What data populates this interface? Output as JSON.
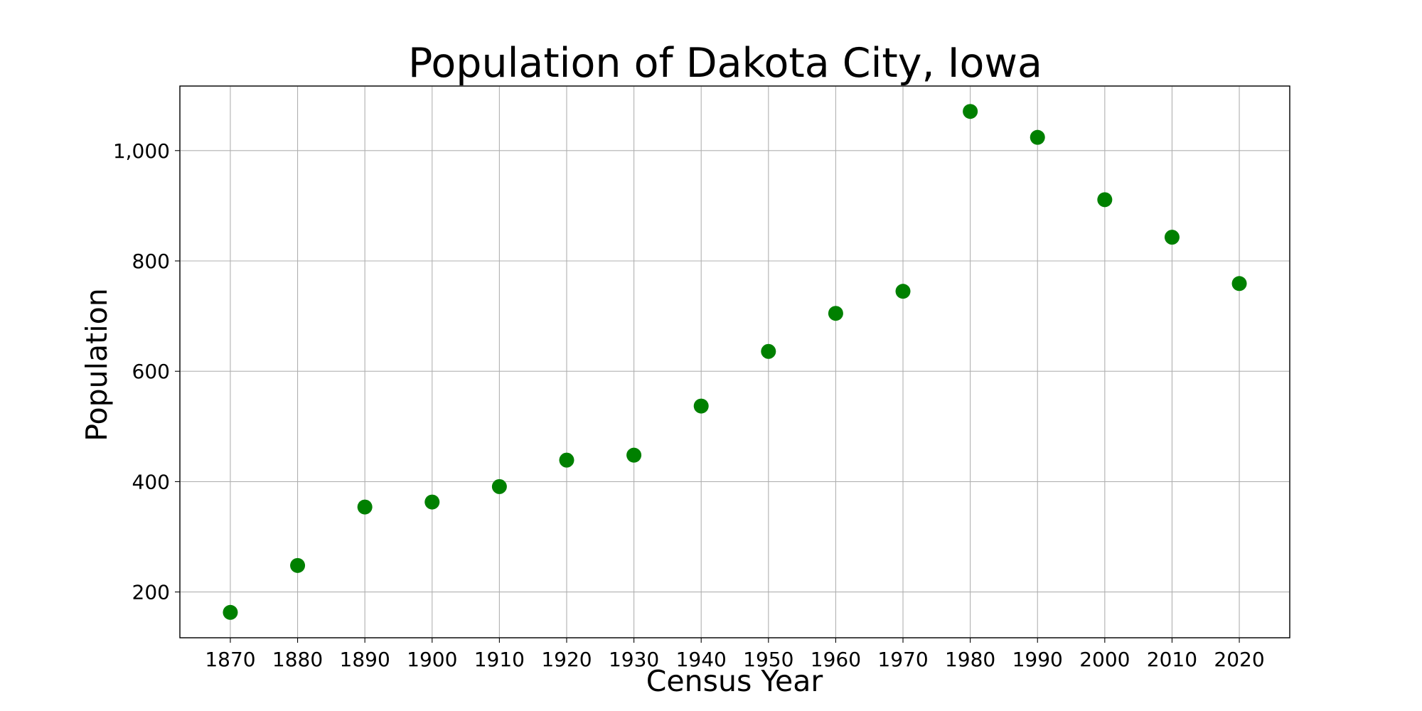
{
  "chart_data": {
    "type": "scatter",
    "title": "Population of Dakota City, Iowa",
    "xlabel": "Census Year",
    "ylabel": "Population",
    "x": [
      1870,
      1880,
      1890,
      1900,
      1910,
      1920,
      1930,
      1940,
      1950,
      1960,
      1970,
      1980,
      1990,
      2000,
      2010,
      2020
    ],
    "y": [
      163,
      248,
      354,
      363,
      391,
      439,
      448,
      537,
      636,
      705,
      745,
      1071,
      1024,
      911,
      843,
      759
    ],
    "xlim": [
      1862.5,
      2027.5
    ],
    "ylim": [
      117,
      1117
    ],
    "x_ticks": [
      1870,
      1880,
      1890,
      1900,
      1910,
      1920,
      1930,
      1940,
      1950,
      1960,
      1970,
      1980,
      1990,
      2000,
      2010,
      2020
    ],
    "x_tick_labels": [
      "1870",
      "1880",
      "1890",
      "1900",
      "1910",
      "1920",
      "1930",
      "1940",
      "1950",
      "1960",
      "1970",
      "1980",
      "1990",
      "2000",
      "2010",
      "2020"
    ],
    "y_ticks": [
      200,
      400,
      600,
      800,
      1000
    ],
    "y_tick_labels": [
      "200",
      "400",
      "600",
      "800",
      "1,000"
    ],
    "grid": true,
    "marker_color": "#008000"
  }
}
